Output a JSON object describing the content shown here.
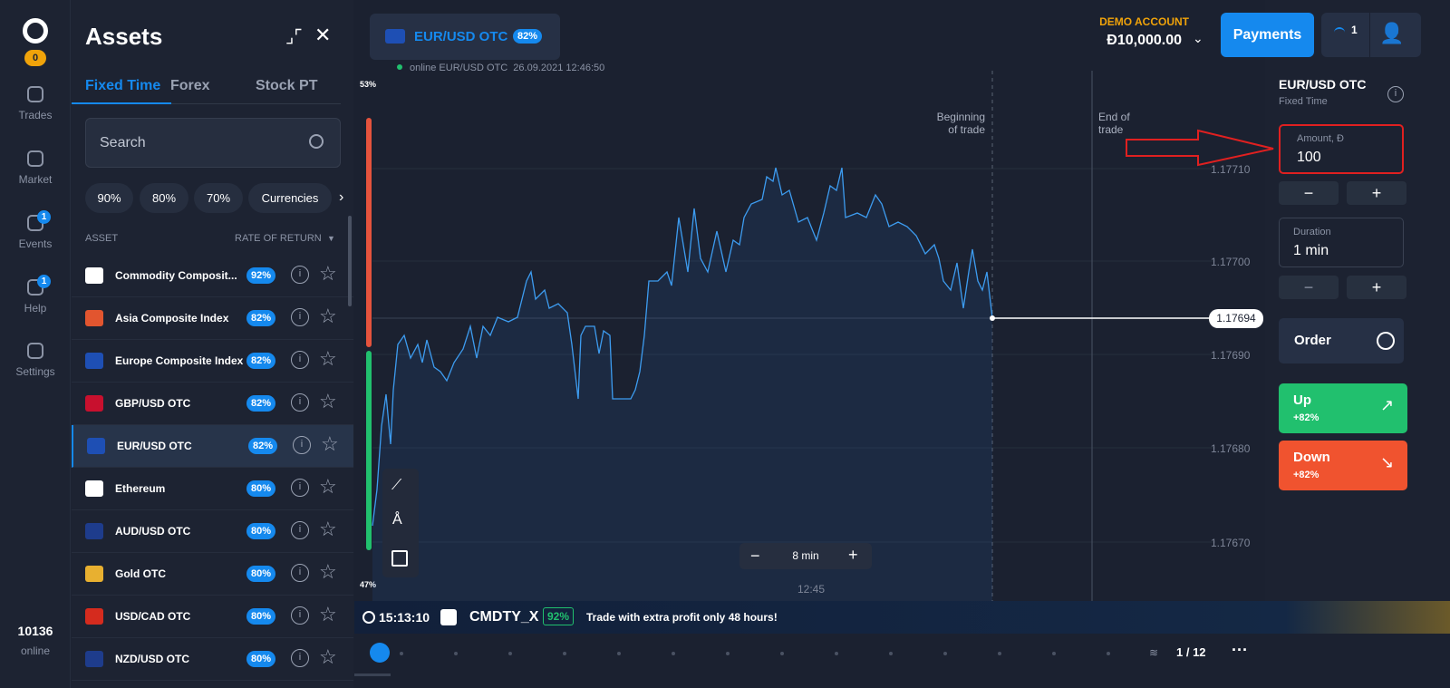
{
  "sidebar": {
    "badge": "0",
    "items": [
      {
        "label": "Trades"
      },
      {
        "label": "Market"
      },
      {
        "label": "Events",
        "badge": "1"
      },
      {
        "label": "Help",
        "badge": "1"
      },
      {
        "label": "Settings"
      }
    ],
    "online_count": "10136",
    "online_label": "online"
  },
  "assets": {
    "title": "Assets",
    "tabs": [
      "Fixed Time",
      "Forex",
      "Stock PT"
    ],
    "search": "Search",
    "filters": [
      "90%",
      "80%",
      "70%",
      "Currencies"
    ],
    "col_asset": "ASSET",
    "col_return": "RATE OF RETURN",
    "rows": [
      {
        "name": "Commodity Composit...",
        "rate": "92%"
      },
      {
        "name": "Asia Composite Index",
        "rate": "82%"
      },
      {
        "name": "Europe Composite Index",
        "rate": "82%"
      },
      {
        "name": "GBP/USD OTC",
        "rate": "82%"
      },
      {
        "name": "EUR/USD OTC",
        "rate": "82%"
      },
      {
        "name": "Ethereum",
        "rate": "80%"
      },
      {
        "name": "AUD/USD OTC",
        "rate": "80%"
      },
      {
        "name": "Gold OTC",
        "rate": "80%"
      },
      {
        "name": "USD/CAD OTC",
        "rate": "80%"
      },
      {
        "name": "NZD/USD OTC",
        "rate": "80%"
      }
    ]
  },
  "header": {
    "pair": "EUR/USD OTC",
    "pair_rate": "82%",
    "account_label": "DEMO ACCOUNT",
    "balance": "Đ10,000.00",
    "payments": "Payments",
    "notif": "1"
  },
  "chart": {
    "status": "online EUR/USD OTC  26.09.2021 12:46:50",
    "top_pct": "53%",
    "bottom_pct": "47%",
    "begin_label": "Beginning of trade",
    "end_label": "End of trade",
    "price_ticks": [
      "1.17710",
      "1.17700",
      "1.17690",
      "1.17680",
      "1.17670"
    ],
    "current_price": "1.17694",
    "timeframe": "8 min",
    "time_label": "12:45"
  },
  "ticker": {
    "time": "15:13:10",
    "symbol": "CMDTY_X",
    "rate": "92%",
    "message": "Trade with extra profit only 48 hours!",
    "page": "1 / 12"
  },
  "panel": {
    "pair": "EUR/USD OTC",
    "mode": "Fixed Time",
    "amount_label": "Amount, Đ",
    "amount": "100",
    "duration_label": "Duration",
    "duration": "1 min",
    "order": "Order",
    "up": "Up",
    "up_rate": "+82%",
    "down": "Down",
    "down_rate": "+82%"
  }
}
